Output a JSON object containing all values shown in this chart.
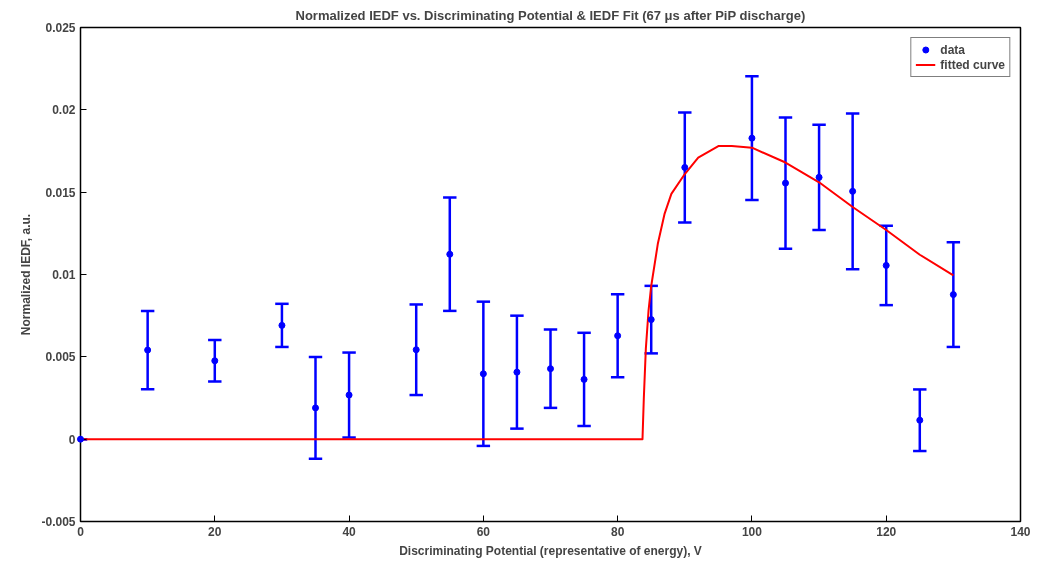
{
  "chart_data": {
    "type": "scatter",
    "title": "Normalized IEDF vs. Discriminating Potential & IEDF Fit (67 μs after PiP discharge)",
    "xlabel": "Discriminating Potential (representative of energy), V",
    "ylabel": "Normalized IEDF, a.u.",
    "xlim": [
      0,
      140
    ],
    "xticks": [
      0,
      20,
      40,
      60,
      80,
      100,
      120,
      140
    ],
    "ylim": [
      -0.005,
      0.025
    ],
    "yticks": [
      -0.005,
      0,
      0.005,
      0.01,
      0.015,
      0.02,
      0.025
    ],
    "grid": false,
    "legend": "top right",
    "series": [
      {
        "name": "data",
        "type": "scatter",
        "marker": "circle",
        "color": "#0000ff",
        "x": [
          0,
          10,
          20,
          30,
          35,
          40,
          50,
          55,
          60,
          65,
          70,
          75,
          80,
          85,
          90,
          100,
          105,
          110,
          115,
          120,
          125,
          130
        ],
        "values": [
          0,
          0.00541,
          0.00476,
          0.00691,
          0.0019,
          0.00268,
          0.00543,
          0.01123,
          0.00397,
          0.00407,
          0.00428,
          0.00363,
          0.00628,
          0.00726,
          0.0165,
          0.01828,
          0.01555,
          0.0159,
          0.01505,
          0.01055,
          0.00115,
          0.00878
        ],
        "errors": [
          0,
          0.00238,
          0.00126,
          0.00131,
          0.00309,
          0.00258,
          0.00275,
          0.00344,
          0.00438,
          0.00343,
          0.00238,
          0.00283,
          0.00252,
          0.00205,
          0.00334,
          0.00376,
          0.00399,
          0.0032,
          0.00473,
          0.00241,
          0.00187,
          0.00318
        ]
      },
      {
        "name": "fitted curve",
        "type": "line",
        "line_style": "solid",
        "color": "#ff0000",
        "x": [
          0,
          83.7,
          83.9,
          84.2,
          84.6,
          85,
          86,
          87,
          88,
          90,
          92,
          95,
          97,
          100,
          105,
          110,
          115,
          120,
          125,
          130
        ],
        "values": [
          0,
          0,
          0.0025,
          0.0055,
          0.0078,
          0.0093,
          0.0119,
          0.0137,
          0.0149,
          0.0161,
          0.0171,
          0.0178,
          0.0178,
          0.0177,
          0.0168,
          0.0156,
          0.0141,
          0.0127,
          0.0112,
          0.00995
        ]
      }
    ]
  }
}
